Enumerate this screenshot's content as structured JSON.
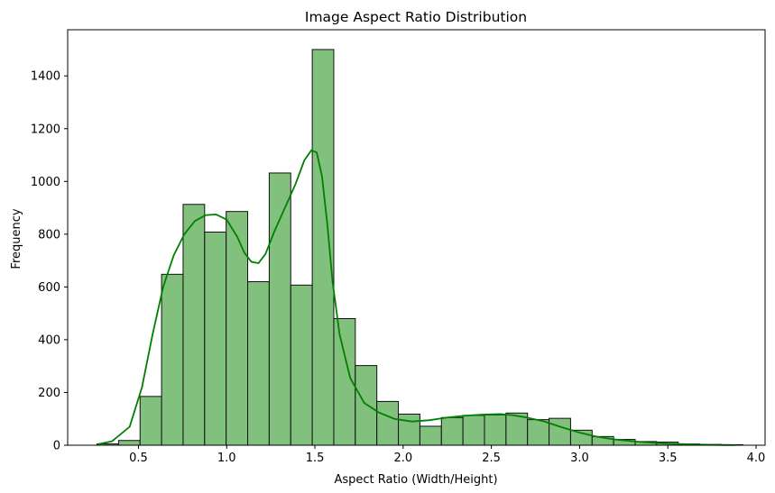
{
  "chart_data": {
    "type": "bar",
    "subtype": "histogram",
    "title": "Image Aspect Ratio Distribution",
    "xlabel": "Aspect Ratio (Width/Height)",
    "ylabel": "Frequency",
    "xlim": [
      0.0988,
      4.0512
    ],
    "ylim": [
      0,
      1575
    ],
    "xticks": [
      0.5,
      1.0,
      1.5,
      2.0,
      2.5,
      3.0,
      3.5,
      4.0
    ],
    "yticks": [
      0,
      200,
      400,
      600,
      800,
      1000,
      1200,
      1400
    ],
    "xtick_labels": [
      "0.5",
      "1.0",
      "1.5",
      "2.0",
      "2.5",
      "3.0",
      "3.5",
      "4.0"
    ],
    "ytick_labels": [
      "0",
      "200",
      "400",
      "600",
      "800",
      "1000",
      "1200",
      "1400"
    ],
    "grid": false,
    "bar_color": "#81c07d",
    "edge_color": "#111111",
    "line_color": "#008000",
    "bins": [
      {
        "x0": 0.265,
        "x1": 0.387,
        "count": 5
      },
      {
        "x0": 0.387,
        "x1": 0.509,
        "count": 18
      },
      {
        "x0": 0.509,
        "x1": 0.631,
        "count": 185
      },
      {
        "x0": 0.631,
        "x1": 0.753,
        "count": 648
      },
      {
        "x0": 0.753,
        "x1": 0.875,
        "count": 913
      },
      {
        "x0": 0.875,
        "x1": 0.997,
        "count": 808
      },
      {
        "x0": 0.997,
        "x1": 1.119,
        "count": 886
      },
      {
        "x0": 1.119,
        "x1": 1.241,
        "count": 620
      },
      {
        "x0": 1.241,
        "x1": 1.363,
        "count": 1032
      },
      {
        "x0": 1.363,
        "x1": 1.485,
        "count": 607
      },
      {
        "x0": 1.485,
        "x1": 1.607,
        "count": 1500
      },
      {
        "x0": 1.607,
        "x1": 1.729,
        "count": 480
      },
      {
        "x0": 1.729,
        "x1": 1.851,
        "count": 302
      },
      {
        "x0": 1.851,
        "x1": 1.973,
        "count": 166
      },
      {
        "x0": 1.973,
        "x1": 2.095,
        "count": 118
      },
      {
        "x0": 2.095,
        "x1": 2.217,
        "count": 72
      },
      {
        "x0": 2.217,
        "x1": 2.339,
        "count": 105
      },
      {
        "x0": 2.339,
        "x1": 2.461,
        "count": 113
      },
      {
        "x0": 2.461,
        "x1": 2.583,
        "count": 115
      },
      {
        "x0": 2.583,
        "x1": 2.705,
        "count": 122
      },
      {
        "x0": 2.705,
        "x1": 2.827,
        "count": 97
      },
      {
        "x0": 2.827,
        "x1": 2.949,
        "count": 102
      },
      {
        "x0": 2.949,
        "x1": 3.071,
        "count": 57
      },
      {
        "x0": 3.071,
        "x1": 3.193,
        "count": 33
      },
      {
        "x0": 3.193,
        "x1": 3.315,
        "count": 22
      },
      {
        "x0": 3.315,
        "x1": 3.437,
        "count": 14
      },
      {
        "x0": 3.437,
        "x1": 3.559,
        "count": 12
      },
      {
        "x0": 3.559,
        "x1": 3.681,
        "count": 5
      },
      {
        "x0": 3.681,
        "x1": 3.803,
        "count": 3
      },
      {
        "x0": 3.803,
        "x1": 3.925,
        "count": 2
      }
    ],
    "kde": {
      "x": [
        0.27,
        0.35,
        0.45,
        0.52,
        0.58,
        0.64,
        0.7,
        0.76,
        0.82,
        0.88,
        0.94,
        1.0,
        1.06,
        1.1,
        1.14,
        1.18,
        1.22,
        1.27,
        1.33,
        1.39,
        1.44,
        1.48,
        1.51,
        1.54,
        1.57,
        1.6,
        1.64,
        1.7,
        1.78,
        1.86,
        1.95,
        2.05,
        2.15,
        2.25,
        2.35,
        2.45,
        2.55,
        2.62,
        2.7,
        2.8,
        2.9,
        3.0,
        3.1,
        3.2,
        3.35,
        3.5,
        3.65,
        3.8,
        3.88
      ],
      "y": [
        4,
        15,
        70,
        220,
        420,
        600,
        720,
        800,
        850,
        872,
        875,
        855,
        790,
        730,
        695,
        690,
        725,
        810,
        900,
        990,
        1080,
        1118,
        1110,
        1020,
        840,
        620,
        420,
        255,
        160,
        125,
        100,
        90,
        95,
        105,
        112,
        116,
        118,
        114,
        105,
        90,
        68,
        48,
        32,
        22,
        12,
        6,
        3,
        1,
        0.5
      ]
    }
  }
}
